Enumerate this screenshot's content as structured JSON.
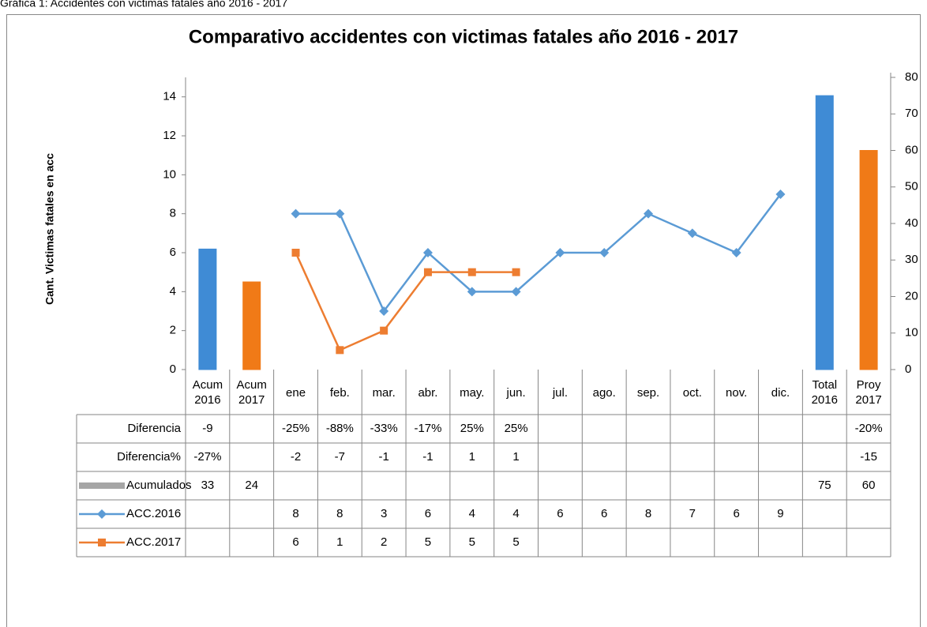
{
  "caption": "Gráfica 1: Accidentes con victimas fatales año 2016 - 2017",
  "chart_data": {
    "type": "combo",
    "title": "Comparativo accidentes con victimas fatales  año 2016 - 2017",
    "y_label": "Cant. Victimas fatales  en acc",
    "categories": [
      "Acum 2016",
      "Acum 2017",
      "ene",
      "feb.",
      "mar.",
      "abr.",
      "may.",
      "jun.",
      "jul.",
      "ago.",
      "sep.",
      "oct.",
      "nov.",
      "dic.",
      "Total 2016",
      "Proy 2017"
    ],
    "ylim": [
      0,
      15
    ],
    "yticks": [
      0,
      2,
      4,
      6,
      8,
      10,
      12,
      14
    ],
    "y2lim": [
      0,
      80
    ],
    "y2ticks": [
      0,
      10,
      20,
      30,
      40,
      50,
      60,
      70,
      80
    ],
    "table_rows": [
      {
        "name": "Diferencia",
        "cells": [
          "-9",
          null,
          "-25%",
          "-88%",
          "-33%",
          "-17%",
          "25%",
          "25%",
          null,
          null,
          null,
          null,
          null,
          null,
          null,
          "-20%"
        ]
      },
      {
        "name": "Diferencia%",
        "cells": [
          "-27%",
          null,
          "-2",
          "-7",
          "-1",
          "-1",
          "1",
          "1",
          null,
          null,
          null,
          null,
          null,
          null,
          null,
          "-15"
        ]
      }
    ],
    "series": [
      {
        "name": "Acumulados",
        "type": "bar",
        "axis": "y2",
        "color": "#a6a6a6",
        "colors": [
          "#3f8bd5",
          "#f07a17",
          null,
          null,
          null,
          null,
          null,
          null,
          null,
          null,
          null,
          null,
          null,
          null,
          "#3f8bd5",
          "#f07a17"
        ],
        "values": [
          33,
          24,
          null,
          null,
          null,
          null,
          null,
          null,
          null,
          null,
          null,
          null,
          null,
          null,
          75,
          60
        ]
      },
      {
        "name": "ACC.2016",
        "type": "line",
        "marker": "diamond",
        "color": "#5b9bd5",
        "values": [
          null,
          null,
          8,
          8,
          3,
          6,
          4,
          4,
          6,
          6,
          8,
          7,
          6,
          9,
          null,
          null
        ]
      },
      {
        "name": "ACC.2017",
        "type": "line",
        "marker": "square",
        "color": "#ed7d31",
        "values": [
          null,
          null,
          6,
          1,
          2,
          5,
          5,
          5,
          null,
          null,
          null,
          null,
          null,
          null,
          null,
          null
        ]
      }
    ]
  }
}
